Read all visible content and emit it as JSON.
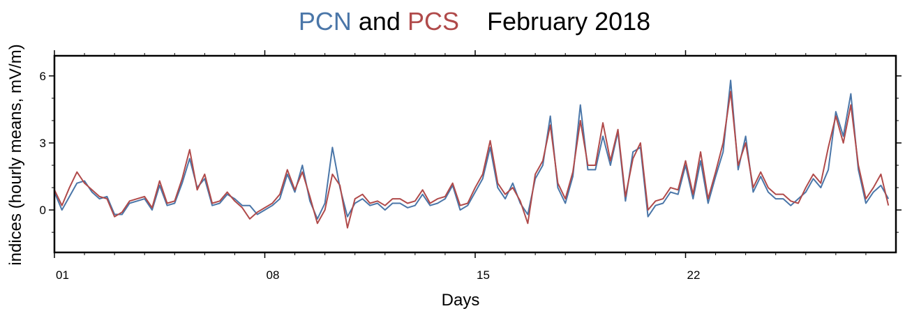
{
  "chart_data": {
    "type": "line",
    "title_series_names": [
      "PCN",
      "PCS"
    ],
    "title_connector": "and",
    "title": "February 2018",
    "x_label": "Days",
    "y_label": "indices (hourly means, mV/m)",
    "xlim": [
      1,
      29
    ],
    "xticks": [
      {
        "value": 1,
        "label": "01"
      },
      {
        "value": 8,
        "label": "08"
      },
      {
        "value": 15,
        "label": "15"
      },
      {
        "value": 22,
        "label": "22"
      }
    ],
    "xminorticks": [
      2,
      3,
      4,
      5,
      6,
      7,
      9,
      10,
      11,
      12,
      13,
      14,
      16,
      17,
      18,
      19,
      20,
      21,
      23,
      24,
      25,
      26,
      27,
      28
    ],
    "ylim": [
      -1.9,
      6.9
    ],
    "yticks": [
      0,
      3,
      6
    ],
    "yminorticks": [
      -1,
      1,
      2,
      4,
      5
    ],
    "x": [
      1,
      1.25,
      1.5,
      1.75,
      2,
      2.25,
      2.5,
      2.75,
      3,
      3.25,
      3.5,
      3.75,
      4,
      4.25,
      4.5,
      4.75,
      5,
      5.25,
      5.5,
      5.75,
      6,
      6.25,
      6.5,
      6.75,
      7,
      7.25,
      7.5,
      7.75,
      8,
      8.25,
      8.5,
      8.75,
      9,
      9.25,
      9.5,
      9.75,
      10,
      10.25,
      10.5,
      10.75,
      11,
      11.25,
      11.5,
      11.75,
      12,
      12.25,
      12.5,
      12.75,
      13,
      13.25,
      13.5,
      13.75,
      14,
      14.25,
      14.5,
      14.75,
      15,
      15.25,
      15.5,
      15.75,
      16,
      16.25,
      16.5,
      16.75,
      17,
      17.25,
      17.5,
      17.75,
      18,
      18.25,
      18.5,
      18.75,
      19,
      19.25,
      19.5,
      19.75,
      20,
      20.25,
      20.5,
      20.75,
      21,
      21.25,
      21.5,
      21.75,
      22,
      22.25,
      22.5,
      22.75,
      23,
      23.25,
      23.5,
      23.75,
      24,
      24.25,
      24.5,
      24.75,
      25,
      25.25,
      25.5,
      25.75,
      26,
      26.25,
      26.5,
      26.75,
      27,
      27.25,
      27.5,
      27.75,
      28,
      28.25,
      28.5,
      28.75
    ],
    "series": [
      {
        "name": "PCN",
        "color": "#4a76a8",
        "values": [
          0.8,
          0.0,
          0.6,
          1.2,
          1.3,
          0.8,
          0.5,
          0.6,
          -0.2,
          -0.2,
          0.3,
          0.4,
          0.5,
          0.0,
          1.1,
          0.2,
          0.3,
          1.2,
          2.3,
          1.0,
          1.4,
          0.2,
          0.3,
          0.7,
          0.5,
          0.2,
          0.2,
          -0.2,
          0.0,
          0.2,
          0.5,
          1.6,
          0.8,
          2.0,
          0.4,
          -0.4,
          0.3,
          2.8,
          1.0,
          -0.3,
          0.3,
          0.5,
          0.2,
          0.3,
          0.0,
          0.3,
          0.3,
          0.1,
          0.2,
          0.7,
          0.2,
          0.3,
          0.5,
          1.1,
          0.0,
          0.2,
          0.8,
          1.4,
          2.8,
          1.0,
          0.5,
          1.2,
          0.3,
          -0.2,
          1.4,
          2.0,
          4.2,
          1.0,
          0.3,
          1.5,
          4.7,
          1.8,
          1.8,
          3.3,
          2.0,
          3.5,
          0.4,
          2.6,
          2.8,
          -0.3,
          0.2,
          0.3,
          0.8,
          0.7,
          2.0,
          0.5,
          2.2,
          0.3,
          1.5,
          2.6,
          5.8,
          1.8,
          3.3,
          0.8,
          1.5,
          0.8,
          0.5,
          0.5,
          0.2,
          0.5,
          0.8,
          1.4,
          1.0,
          1.8,
          4.4,
          3.3,
          5.2,
          1.8,
          0.3,
          0.8,
          1.1,
          0.5
        ]
      },
      {
        "name": "PCS",
        "color": "#b04a4a",
        "values": [
          0.9,
          0.2,
          1.0,
          1.7,
          1.2,
          0.9,
          0.6,
          0.5,
          -0.3,
          -0.1,
          0.4,
          0.5,
          0.6,
          0.1,
          1.3,
          0.3,
          0.4,
          1.4,
          2.7,
          0.9,
          1.6,
          0.3,
          0.4,
          0.8,
          0.4,
          0.1,
          -0.4,
          -0.1,
          0.1,
          0.3,
          0.7,
          1.8,
          0.9,
          1.7,
          0.6,
          -0.6,
          0.0,
          1.6,
          1.1,
          -0.8,
          0.5,
          0.7,
          0.3,
          0.4,
          0.2,
          0.5,
          0.5,
          0.3,
          0.4,
          0.9,
          0.3,
          0.5,
          0.6,
          1.2,
          0.2,
          0.3,
          1.0,
          1.6,
          3.1,
          1.2,
          0.7,
          1.0,
          0.4,
          -0.6,
          1.6,
          2.2,
          3.8,
          1.2,
          0.5,
          1.7,
          4.0,
          2.0,
          2.0,
          3.9,
          2.2,
          3.6,
          0.6,
          2.3,
          3.0,
          0.0,
          0.4,
          0.5,
          1.0,
          0.9,
          2.2,
          0.7,
          2.6,
          0.5,
          1.7,
          3.0,
          5.3,
          2.0,
          3.0,
          1.0,
          1.7,
          1.0,
          0.7,
          0.7,
          0.4,
          0.3,
          1.0,
          1.6,
          1.2,
          2.8,
          4.2,
          3.0,
          4.7,
          2.0,
          0.5,
          1.0,
          1.6,
          0.2
        ]
      }
    ]
  }
}
